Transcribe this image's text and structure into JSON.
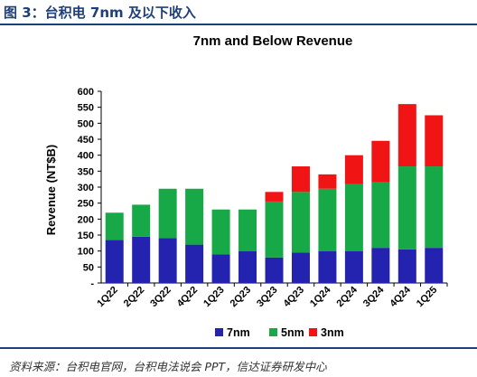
{
  "figure": {
    "label": "图 3：台积电 7nm 及以下收入",
    "source": "资料来源：台积电官网，台积电法说会 PPT，信达证券研发中心"
  },
  "colors": {
    "7nm": "#2323b0",
    "5nm": "#17a847",
    "3nm": "#f01414",
    "frame": "#1f3f7a"
  },
  "chart_data": {
    "type": "bar",
    "stacked": true,
    "title": "7nm and Below Revenue",
    "xlabel": "",
    "ylabel": "Revenue (NT$B)",
    "ylim": [
      0,
      600
    ],
    "yticks": [
      "-",
      "50",
      "100",
      "150",
      "200",
      "250",
      "300",
      "350",
      "400",
      "450",
      "500",
      "550",
      "600"
    ],
    "grid": false,
    "legend_position": "bottom",
    "categories": [
      "1Q22",
      "2Q22",
      "3Q22",
      "4Q22",
      "1Q23",
      "2Q23",
      "3Q23",
      "4Q23",
      "1Q24",
      "2Q24",
      "3Q24",
      "4Q24",
      "1Q25"
    ],
    "series": [
      {
        "name": "7nm",
        "values": [
          135,
          145,
          140,
          120,
          90,
          100,
          80,
          95,
          100,
          100,
          110,
          105,
          110
        ]
      },
      {
        "name": "5nm",
        "values": [
          85,
          100,
          155,
          175,
          140,
          130,
          175,
          190,
          195,
          210,
          205,
          260,
          255
        ]
      },
      {
        "name": "3nm",
        "values": [
          0,
          0,
          0,
          0,
          0,
          0,
          30,
          80,
          45,
          90,
          130,
          195,
          160
        ]
      }
    ]
  }
}
